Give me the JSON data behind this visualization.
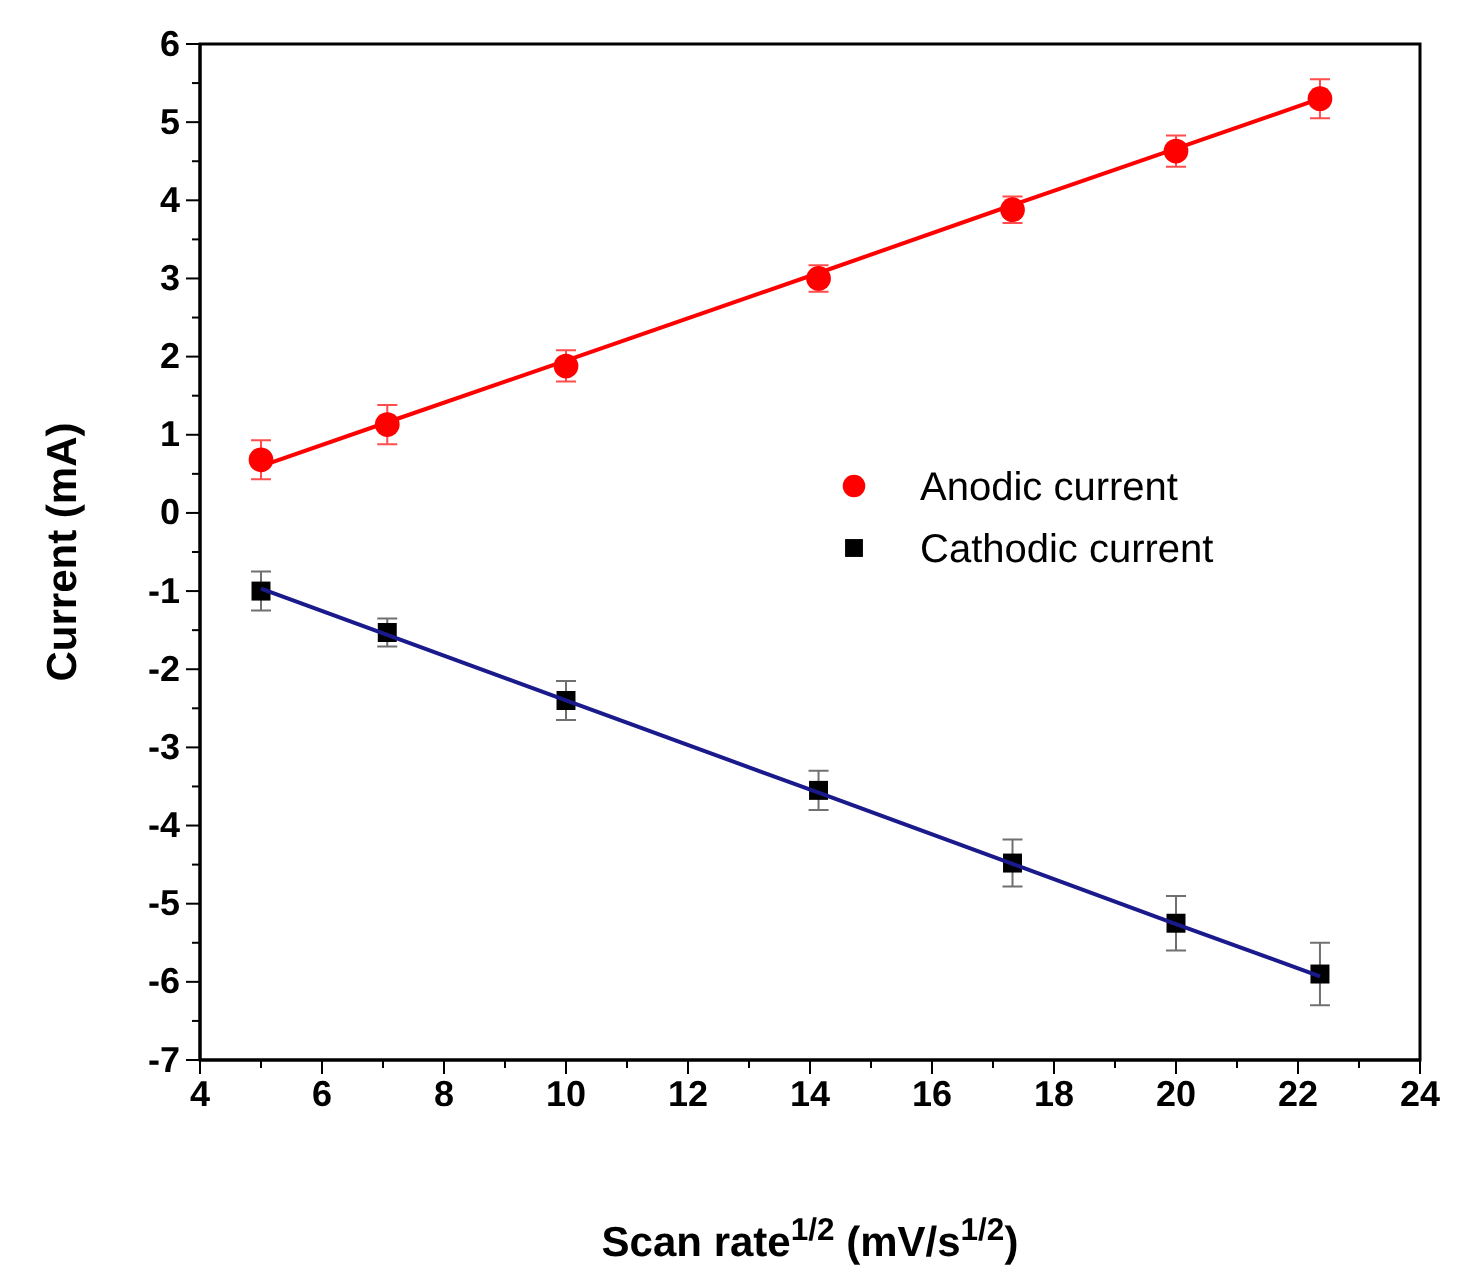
{
  "chart_data": {
    "type": "scatter",
    "xlabel": "Scan rate$^{1/2}$ (mV/s$^{1/2}$)",
    "ylabel": "Current (mA)",
    "x": [
      5,
      7.07,
      10,
      14.14,
      17.32,
      20,
      22.36
    ],
    "xlim": [
      4,
      24
    ],
    "xticks": [
      4,
      6,
      8,
      10,
      12,
      14,
      16,
      18,
      20,
      22,
      24
    ],
    "ylim": [
      -7,
      6
    ],
    "yticks": [
      -7,
      -6,
      -5,
      -4,
      -3,
      -2,
      -1,
      0,
      1,
      2,
      3,
      4,
      5,
      6
    ],
    "legend": "right",
    "grid": false,
    "series": [
      {
        "name": "Anodic current",
        "marker": "circle",
        "color": "#ff0000",
        "values": [
          0.68,
          1.13,
          1.88,
          3.0,
          3.88,
          4.63,
          5.3
        ],
        "errors": [
          0.25,
          0.25,
          0.2,
          0.17,
          0.17,
          0.2,
          0.25
        ]
      },
      {
        "name": "Cathodic current",
        "marker": "square",
        "color": "#000000",
        "values": [
          -1.0,
          -1.53,
          -2.4,
          -3.55,
          -4.48,
          -5.25,
          -5.9
        ],
        "errors": [
          0.25,
          0.18,
          0.25,
          0.25,
          0.3,
          0.35,
          0.4
        ]
      },
      {
        "type": "line",
        "color": "#ff0000",
        "values": [
          0.6,
          1.16,
          1.95,
          3.07,
          3.94,
          4.66,
          5.3
        ]
      },
      {
        "type": "line",
        "color": "#1a1a8c",
        "values": [
          -0.97,
          -1.56,
          -2.4,
          -3.58,
          -4.49,
          -5.26,
          -5.93
        ]
      }
    ]
  }
}
